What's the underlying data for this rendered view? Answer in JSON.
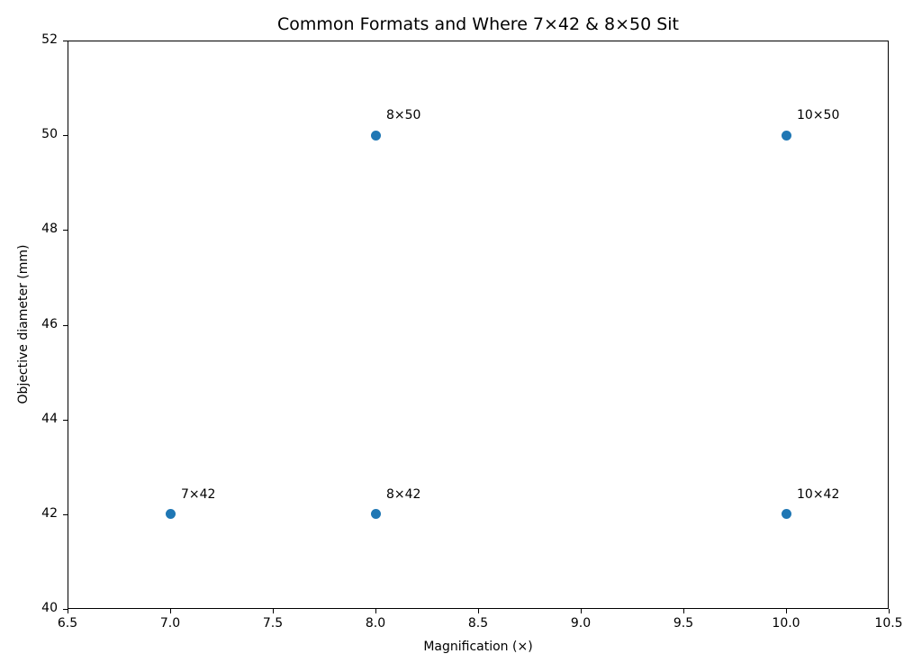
{
  "chart_data": {
    "type": "scatter",
    "title": "Common Formats and Where 7×42 & 8×50 Sit",
    "xlabel": "Magnification (×)",
    "ylabel": "Objective diameter (mm)",
    "xlim": [
      6.5,
      10.5
    ],
    "ylim": [
      40,
      52
    ],
    "xticks": [
      "6.5",
      "7.0",
      "7.5",
      "8.0",
      "8.5",
      "9.0",
      "9.5",
      "10.0",
      "10.5"
    ],
    "yticks": [
      "40",
      "42",
      "44",
      "46",
      "48",
      "50",
      "52"
    ],
    "grid": false,
    "legend": null,
    "series": [
      {
        "name": "formats",
        "color": "#1f77b4",
        "points": [
          {
            "x": 7,
            "y": 42,
            "label": "7×42"
          },
          {
            "x": 8,
            "y": 42,
            "label": "8×42"
          },
          {
            "x": 10,
            "y": 42,
            "label": "10×42"
          },
          {
            "x": 8,
            "y": 50,
            "label": "8×50"
          },
          {
            "x": 10,
            "y": 50,
            "label": "10×50"
          }
        ]
      }
    ]
  }
}
